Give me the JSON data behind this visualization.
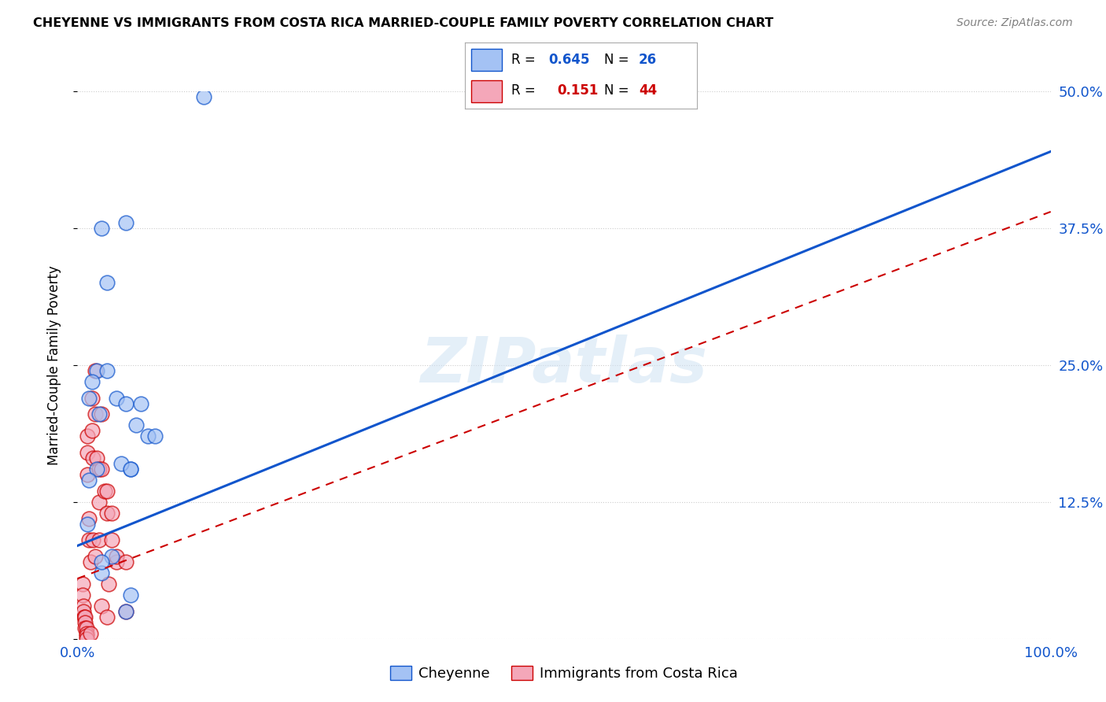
{
  "title": "CHEYENNE VS IMMIGRANTS FROM COSTA RICA MARRIED-COUPLE FAMILY POVERTY CORRELATION CHART",
  "source": "Source: ZipAtlas.com",
  "ylabel": "Married-Couple Family Poverty",
  "xlim": [
    0,
    1
  ],
  "ylim": [
    0,
    0.5
  ],
  "xticks": [
    0.0,
    0.25,
    0.5,
    0.75,
    1.0
  ],
  "xticklabels": [
    "0.0%",
    "",
    "",
    "",
    "100.0%"
  ],
  "ytick_positions": [
    0.0,
    0.125,
    0.25,
    0.375,
    0.5
  ],
  "yticklabels": [
    "",
    "12.5%",
    "25.0%",
    "37.5%",
    "50.0%"
  ],
  "legend1_label": "Cheyenne",
  "legend2_label": "Immigrants from Costa Rica",
  "R1": 0.645,
  "N1": 26,
  "R2": 0.151,
  "N2": 44,
  "color1": "#a4c2f4",
  "color2": "#f4a7b9",
  "line1_color": "#1155cc",
  "line2_color": "#cc0000",
  "watermark": "ZIPatlas",
  "cheyenne_x": [
    0.13,
    0.02,
    0.015,
    0.03,
    0.012,
    0.022,
    0.04,
    0.02,
    0.012,
    0.01,
    0.05,
    0.065,
    0.072,
    0.08,
    0.055,
    0.045,
    0.025,
    0.035,
    0.055,
    0.05,
    0.025,
    0.03,
    0.06,
    0.055,
    0.025,
    0.05
  ],
  "cheyenne_y": [
    0.495,
    0.245,
    0.235,
    0.245,
    0.22,
    0.205,
    0.22,
    0.155,
    0.145,
    0.105,
    0.215,
    0.215,
    0.185,
    0.185,
    0.155,
    0.16,
    0.06,
    0.075,
    0.04,
    0.38,
    0.375,
    0.325,
    0.195,
    0.155,
    0.07,
    0.025
  ],
  "costarica_x": [
    0.005,
    0.005,
    0.006,
    0.006,
    0.007,
    0.008,
    0.008,
    0.008,
    0.009,
    0.009,
    0.009,
    0.009,
    0.01,
    0.01,
    0.01,
    0.012,
    0.012,
    0.013,
    0.013,
    0.015,
    0.015,
    0.016,
    0.016,
    0.018,
    0.018,
    0.018,
    0.02,
    0.022,
    0.022,
    0.022,
    0.025,
    0.025,
    0.025,
    0.028,
    0.03,
    0.03,
    0.03,
    0.032,
    0.035,
    0.035,
    0.04,
    0.04,
    0.05,
    0.05
  ],
  "costarica_y": [
    0.05,
    0.04,
    0.03,
    0.025,
    0.02,
    0.02,
    0.015,
    0.01,
    0.01,
    0.005,
    0.003,
    0.0,
    0.185,
    0.17,
    0.15,
    0.11,
    0.09,
    0.07,
    0.005,
    0.22,
    0.19,
    0.165,
    0.09,
    0.075,
    0.245,
    0.205,
    0.165,
    0.155,
    0.125,
    0.09,
    0.03,
    0.205,
    0.155,
    0.135,
    0.115,
    0.02,
    0.135,
    0.05,
    0.115,
    0.09,
    0.07,
    0.075,
    0.07,
    0.025
  ],
  "line1_x0": 0.0,
  "line1_y0": 0.085,
  "line1_x1": 1.0,
  "line1_y1": 0.445,
  "line2_x0": 0.0,
  "line2_y0": 0.055,
  "line2_x1": 1.0,
  "line2_y1": 0.39
}
